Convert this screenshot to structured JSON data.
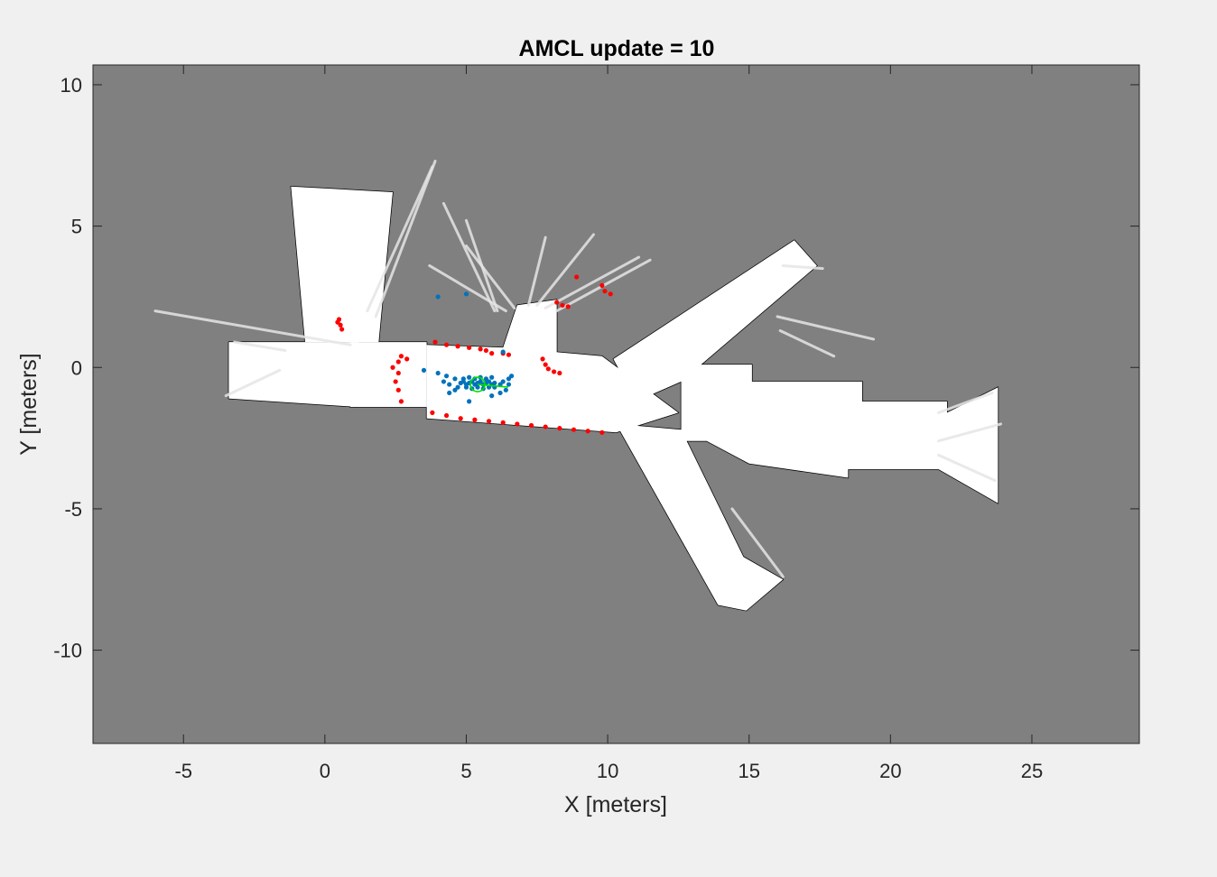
{
  "chart_data": {
    "type": "scatter",
    "title": "AMCL update = 10",
    "xlabel": "X [meters]",
    "ylabel": "Y [meters]",
    "xlim": [
      -8.2,
      28.8
    ],
    "ylim": [
      -13.3,
      10.7
    ],
    "x_ticks": [
      -5,
      0,
      5,
      10,
      15,
      20,
      25
    ],
    "y_ticks": [
      10,
      5,
      0,
      -5,
      -10
    ],
    "x_tick_labels": [
      "-5",
      "0",
      "5",
      "10",
      "15",
      "20",
      "25"
    ],
    "y_tick_labels": [
      "10",
      "5",
      "0",
      "-5",
      "-10"
    ],
    "grid": false,
    "background_color": "#808080",
    "map": {
      "free_color": "#ffffff",
      "wall_color": "#000000",
      "regions": [
        [
          [
            -3.4,
            0.9
          ],
          [
            1.2,
            0.9
          ],
          [
            1.2,
            -1.4
          ],
          [
            -3.4,
            -1.1
          ]
        ],
        [
          [
            -1.2,
            6.4
          ],
          [
            2.4,
            6.2
          ],
          [
            1.9,
            0.9
          ],
          [
            -0.7,
            0.9
          ]
        ],
        [
          [
            0.9,
            0.9
          ],
          [
            3.6,
            0.9
          ],
          [
            3.6,
            -1.4
          ],
          [
            0.9,
            -1.4
          ]
        ],
        [
          [
            3.6,
            0.8
          ],
          [
            6.4,
            0.7
          ],
          [
            9.8,
            0.4
          ],
          [
            12.5,
            -1.6
          ],
          [
            10.3,
            -2.3
          ],
          [
            3.6,
            -1.8
          ]
        ],
        [
          [
            6.2,
            0.4
          ],
          [
            8.2,
            0.4
          ],
          [
            8.2,
            2.4
          ],
          [
            6.8,
            2.2
          ]
        ],
        [
          [
            10.2,
            0.3
          ],
          [
            16.6,
            4.5
          ],
          [
            17.4,
            3.6
          ],
          [
            12.6,
            -0.5
          ],
          [
            11.0,
            -1.2
          ]
        ],
        [
          [
            12.6,
            0.1
          ],
          [
            15.1,
            0.1
          ],
          [
            15.1,
            -0.5
          ],
          [
            19.0,
            -0.5
          ],
          [
            19.0,
            -1.2
          ],
          [
            22.0,
            -1.2
          ],
          [
            22.0,
            -1.6
          ],
          [
            23.8,
            -0.7
          ],
          [
            23.8,
            -4.8
          ],
          [
            21.7,
            -3.6
          ],
          [
            18.5,
            -3.6
          ],
          [
            18.5,
            -3.9
          ],
          [
            15.0,
            -3.4
          ],
          [
            13.5,
            -2.6
          ],
          [
            12.6,
            -2.6
          ]
        ],
        [
          [
            10.3,
            -2.0
          ],
          [
            12.6,
            -2.2
          ],
          [
            14.8,
            -6.7
          ],
          [
            16.2,
            -7.5
          ],
          [
            14.9,
            -8.6
          ],
          [
            13.9,
            -8.4
          ]
        ]
      ],
      "rays": [
        [
          [
            0.9,
            0.8
          ],
          [
            -6.0,
            2.0
          ]
        ],
        [
          [
            1.8,
            1.8
          ],
          [
            3.9,
            7.3
          ]
        ],
        [
          [
            1.5,
            2.0
          ],
          [
            3.8,
            7.1
          ]
        ],
        [
          [
            6.0,
            2.0
          ],
          [
            4.2,
            5.8
          ]
        ],
        [
          [
            6.1,
            2.0
          ],
          [
            5.0,
            5.2
          ]
        ],
        [
          [
            6.4,
            2.0
          ],
          [
            3.7,
            3.6
          ]
        ],
        [
          [
            6.7,
            2.1
          ],
          [
            5.0,
            4.3
          ]
        ],
        [
          [
            7.2,
            2.2
          ],
          [
            7.8,
            4.6
          ]
        ],
        [
          [
            7.5,
            2.2
          ],
          [
            9.5,
            4.7
          ]
        ],
        [
          [
            7.8,
            2.1
          ],
          [
            11.1,
            3.9
          ]
        ],
        [
          [
            8.2,
            2.0
          ],
          [
            11.5,
            3.8
          ]
        ],
        [
          [
            16.0,
            1.8
          ],
          [
            19.4,
            1.0
          ]
        ],
        [
          [
            16.1,
            1.3
          ],
          [
            18.0,
            0.4
          ]
        ],
        [
          [
            16.2,
            3.6
          ],
          [
            17.6,
            3.5
          ]
        ],
        [
          [
            21.7,
            -1.6
          ],
          [
            23.6,
            -0.9
          ]
        ],
        [
          [
            21.7,
            -2.6
          ],
          [
            23.9,
            -2.0
          ]
        ],
        [
          [
            21.7,
            -3.1
          ],
          [
            23.7,
            -4.0
          ]
        ],
        [
          [
            14.4,
            -5.0
          ],
          [
            16.2,
            -7.4
          ]
        ],
        [
          [
            -1.6,
            -0.1
          ],
          [
            -3.5,
            -1.0
          ]
        ],
        [
          [
            -1.4,
            0.6
          ],
          [
            -3.2,
            0.9
          ]
        ]
      ]
    },
    "series": [
      {
        "name": "",
        "color": "#ff0000",
        "points": [
          [
            3.9,
            0.9
          ],
          [
            4.3,
            0.8
          ],
          [
            4.7,
            0.75
          ],
          [
            5.1,
            0.7
          ],
          [
            5.5,
            0.65
          ],
          [
            5.7,
            0.6
          ],
          [
            5.9,
            0.5
          ],
          [
            6.3,
            0.5
          ],
          [
            6.5,
            0.45
          ],
          [
            3.8,
            -1.6
          ],
          [
            4.3,
            -1.7
          ],
          [
            4.8,
            -1.8
          ],
          [
            5.3,
            -1.85
          ],
          [
            5.8,
            -1.9
          ],
          [
            6.3,
            -1.95
          ],
          [
            6.8,
            -2.0
          ],
          [
            7.3,
            -2.05
          ],
          [
            7.8,
            -2.1
          ],
          [
            8.3,
            -2.15
          ],
          [
            8.8,
            -2.2
          ],
          [
            9.3,
            -2.25
          ],
          [
            9.8,
            -2.3
          ],
          [
            7.7,
            0.3
          ],
          [
            7.8,
            0.1
          ],
          [
            7.9,
            -0.05
          ],
          [
            8.1,
            -0.15
          ],
          [
            8.3,
            -0.2
          ],
          [
            8.2,
            2.3
          ],
          [
            8.4,
            2.2
          ],
          [
            8.6,
            2.15
          ],
          [
            2.4,
            0.0
          ],
          [
            2.6,
            0.2
          ],
          [
            2.6,
            -0.2
          ],
          [
            2.7,
            0.4
          ],
          [
            2.9,
            0.3
          ],
          [
            2.5,
            -0.5
          ],
          [
            2.6,
            -0.8
          ],
          [
            2.7,
            -1.2
          ],
          [
            0.5,
            1.7
          ],
          [
            0.55,
            1.5
          ],
          [
            0.6,
            1.35
          ],
          [
            0.45,
            1.6
          ],
          [
            8.9,
            3.2
          ],
          [
            9.8,
            2.9
          ],
          [
            9.9,
            2.7
          ],
          [
            10.1,
            2.6
          ]
        ]
      },
      {
        "name": "",
        "color": "#0072bd",
        "points": [
          [
            4.8,
            -0.55
          ],
          [
            4.9,
            -0.5
          ],
          [
            5.0,
            -0.6
          ],
          [
            5.1,
            -0.55
          ],
          [
            5.2,
            -0.5
          ],
          [
            5.3,
            -0.6
          ],
          [
            5.4,
            -0.55
          ],
          [
            5.5,
            -0.5
          ],
          [
            5.6,
            -0.6
          ],
          [
            5.7,
            -0.55
          ],
          [
            5.8,
            -0.5
          ],
          [
            5.9,
            -0.6
          ],
          [
            6.0,
            -0.55
          ],
          [
            4.9,
            -0.4
          ],
          [
            5.1,
            -0.35
          ],
          [
            5.3,
            -0.4
          ],
          [
            5.5,
            -0.35
          ],
          [
            5.7,
            -0.4
          ],
          [
            5.9,
            -0.35
          ],
          [
            5.0,
            -0.7
          ],
          [
            5.2,
            -0.75
          ],
          [
            5.4,
            -0.7
          ],
          [
            5.6,
            -0.75
          ],
          [
            5.8,
            -0.7
          ],
          [
            6.0,
            -0.7
          ],
          [
            4.6,
            -0.4
          ],
          [
            4.7,
            -0.7
          ],
          [
            4.4,
            -0.6
          ],
          [
            4.3,
            -0.3
          ],
          [
            4.2,
            -0.5
          ],
          [
            4.6,
            -0.8
          ],
          [
            6.2,
            -0.6
          ],
          [
            6.3,
            -0.5
          ],
          [
            6.4,
            -0.8
          ],
          [
            6.5,
            -0.4
          ],
          [
            6.5,
            -0.6
          ],
          [
            6.2,
            -0.9
          ],
          [
            3.5,
            -0.1
          ],
          [
            4.0,
            -0.2
          ],
          [
            4.4,
            -0.9
          ],
          [
            5.1,
            -1.2
          ],
          [
            5.9,
            -1.0
          ],
          [
            6.6,
            -0.3
          ],
          [
            4.0,
            2.5
          ],
          [
            5.0,
            2.6
          ],
          [
            6.3,
            0.55
          ]
        ]
      }
    ],
    "pose_estimate": {
      "x": 5.4,
      "y": -0.6,
      "heading_deg": -5,
      "color": "#00e000"
    }
  }
}
